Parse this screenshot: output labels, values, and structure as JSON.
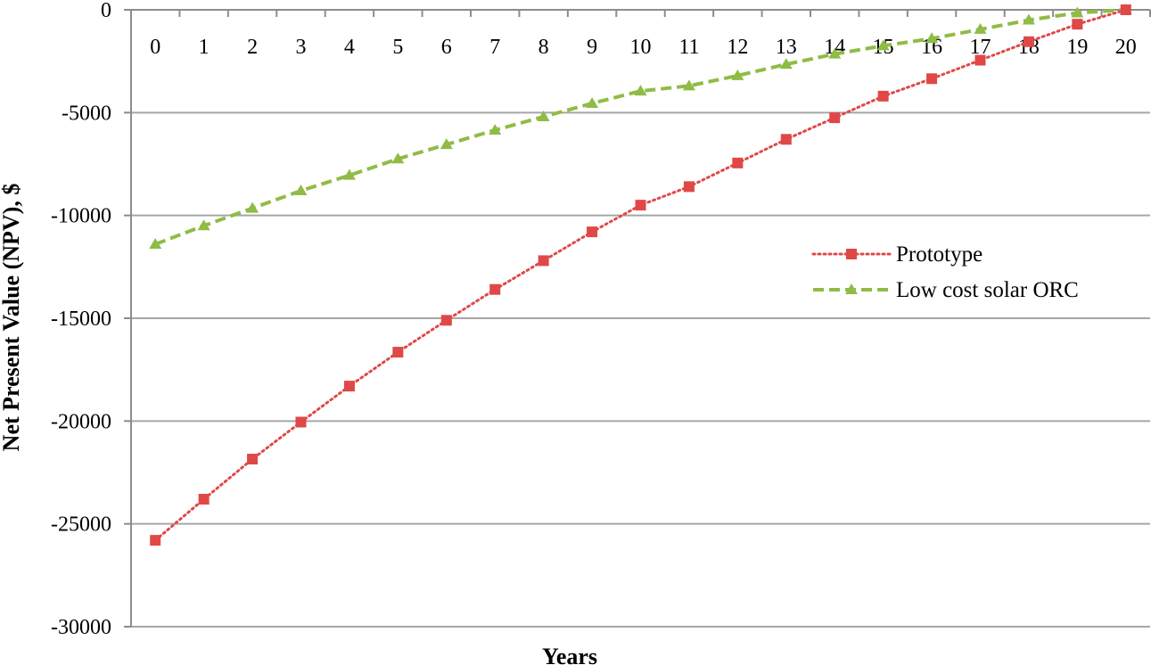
{
  "chart_data": {
    "type": "line",
    "title": "",
    "xlabel": "Years",
    "ylabel": "Net Present Value (NPV), $",
    "x": [
      0,
      1,
      2,
      3,
      4,
      5,
      6,
      7,
      8,
      9,
      10,
      11,
      12,
      13,
      14,
      15,
      16,
      17,
      18,
      19,
      20
    ],
    "x_tick_labels": [
      "0",
      "1",
      "2",
      "3",
      "4",
      "5",
      "6",
      "7",
      "8",
      "9",
      "10",
      "11",
      "12",
      "13",
      "14",
      "15",
      "16",
      "17",
      "18",
      "19",
      "20"
    ],
    "x_tick_position": "top",
    "ylim": [
      -30000,
      0
    ],
    "y_ticks": [
      0,
      -5000,
      -10000,
      -15000,
      -20000,
      -25000,
      -30000
    ],
    "y_tick_labels": [
      "0",
      "-5000",
      "-10000",
      "-15000",
      "-20000",
      "-25000",
      "-30000"
    ],
    "grid": true,
    "legend_position": "right",
    "series": [
      {
        "name": "Prototype",
        "color": "#e04848",
        "line_style": "dotted",
        "marker": "square",
        "values": [
          -25800,
          -23800,
          -21850,
          -20050,
          -18300,
          -16650,
          -15100,
          -13600,
          -12200,
          -10800,
          -9500,
          -8600,
          -7450,
          -6300,
          -5250,
          -4200,
          -3350,
          -2450,
          -1550,
          -700,
          0
        ]
      },
      {
        "name": "Low cost solar ORC",
        "color": "#8fbc45",
        "line_style": "dashed",
        "marker": "triangle",
        "values": [
          -11400,
          -10500,
          -9650,
          -8800,
          -8050,
          -7250,
          -6550,
          -5850,
          -5200,
          -4550,
          -3950,
          -3700,
          -3200,
          -2650,
          -2150,
          -1750,
          -1400,
          -950,
          -500,
          -150,
          0
        ]
      }
    ]
  }
}
